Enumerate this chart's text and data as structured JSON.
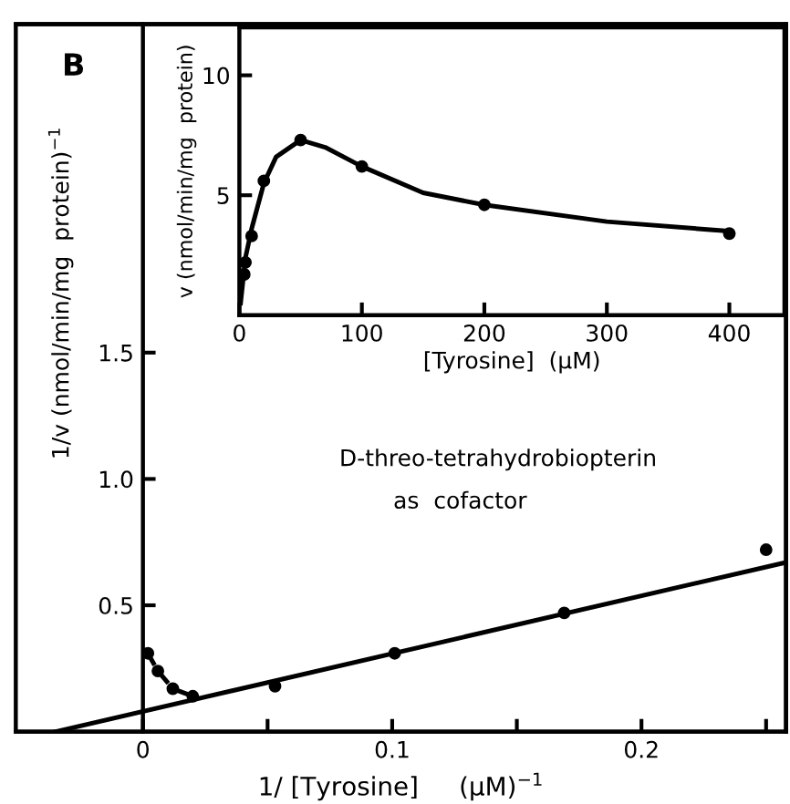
{
  "chart_data": [
    {
      "type": "scatter",
      "xlabel": "1/ [Tyrosine]     (μM)$^{−1}$",
      "ylabel": "1/v (nmol/min/mg  protein)$^{−1}$",
      "annotations": [
        "B",
        "D-threo-tetrahydrobiopterin",
        "as  cofactor"
      ],
      "xlim": [
        -0.051,
        0.258
      ],
      "ylim": [
        0,
        2.8
      ],
      "xticks": [
        0,
        {
          "value": 0.05,
          "label": null
        },
        0.1,
        {
          "value": 0.15,
          "label": null
        },
        0.2,
        {
          "value": 0.25,
          "label": null
        }
      ],
      "yticks": [
        0.5,
        {
          "value": 1.0,
          "label": "1.0"
        },
        1.5
      ],
      "grid": false,
      "legend": false,
      "series": [
        {
          "color": "#000000",
          "marker": "circle",
          "x": [
            0.002,
            0.006,
            0.012,
            0.02,
            0.053,
            0.101,
            0.169,
            0.25
          ],
          "values": [
            0.31,
            0.24,
            0.17,
            0.14,
            0.18,
            0.31,
            0.47,
            0.72
          ]
        },
        {
          "type": "line",
          "color": "#000000",
          "line_style": "dashed",
          "x": [
            0.002,
            0.006,
            0.012,
            0.02
          ],
          "values": [
            0.31,
            0.24,
            0.17,
            0.14
          ]
        },
        {
          "type": "line",
          "color": "#000000",
          "line_style": "solid",
          "x": [
            -0.035,
            0.258
          ],
          "values": [
            0.0,
            0.67
          ]
        }
      ]
    },
    {
      "type": "scatter",
      "xlabel": "[Tyrosine]  (μM)",
      "ylabel": "v (nmol/min/mg  protein)",
      "xlim": [
        0,
        445
      ],
      "ylim": [
        0,
        12
      ],
      "xticks": [
        0,
        100,
        200,
        300,
        400
      ],
      "yticks": [
        5,
        10
      ],
      "grid": false,
      "legend": false,
      "series": [
        {
          "color": "#000000",
          "marker": "circle",
          "x": [
            4,
            5,
            10,
            20,
            50,
            100,
            200,
            400
          ],
          "values": [
            1.7,
            2.2,
            3.3,
            5.6,
            7.3,
            6.2,
            4.6,
            3.4
          ]
        },
        {
          "type": "line",
          "color": "#000000",
          "line_style": "solid",
          "x": [
            1,
            5,
            10,
            20,
            30,
            50,
            70,
            100,
            150,
            200,
            300,
            400
          ],
          "values": [
            0.5,
            2.4,
            3.6,
            5.5,
            6.6,
            7.3,
            7.0,
            6.2,
            5.1,
            4.6,
            3.9,
            3.5
          ]
        }
      ]
    }
  ]
}
